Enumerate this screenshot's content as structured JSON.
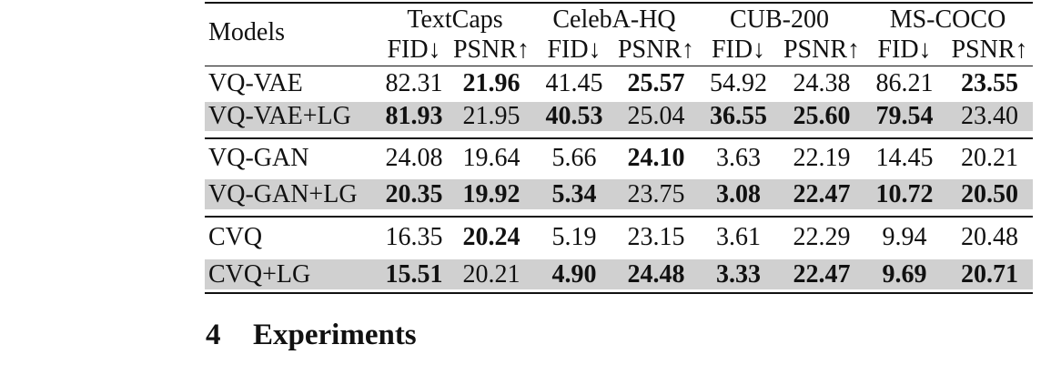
{
  "table": {
    "models_header": "Models",
    "datasets": [
      "TextCaps",
      "CelebA-HQ",
      "CUB-200",
      "MS-COCO"
    ],
    "metrics": [
      "FID↓",
      "PSNR↑",
      "FID↓",
      "PSNR↑",
      "FID↓",
      "PSNR↑",
      "FID↓",
      "PSNR↑"
    ],
    "rows": [
      {
        "model": "VQ-VAE",
        "values": [
          "82.31",
          "21.96",
          "41.45",
          "25.57",
          "54.92",
          "24.38",
          "86.21",
          "23.55"
        ],
        "bold": [
          false,
          true,
          false,
          true,
          false,
          false,
          false,
          true
        ],
        "shaded": false
      },
      {
        "model": "VQ-VAE+LG",
        "values": [
          "81.93",
          "21.95",
          "40.53",
          "25.04",
          "36.55",
          "25.60",
          "79.54",
          "23.40"
        ],
        "bold": [
          true,
          false,
          true,
          false,
          true,
          true,
          true,
          false
        ],
        "shaded": true
      },
      {
        "model": "VQ-GAN",
        "values": [
          "24.08",
          "19.64",
          "5.66",
          "24.10",
          "3.63",
          "22.19",
          "14.45",
          "20.21"
        ],
        "bold": [
          false,
          false,
          false,
          true,
          false,
          false,
          false,
          false
        ],
        "shaded": false
      },
      {
        "model": "VQ-GAN+LG",
        "values": [
          "20.35",
          "19.92",
          "5.34",
          "23.75",
          "3.08",
          "22.47",
          "10.72",
          "20.50"
        ],
        "bold": [
          true,
          true,
          true,
          false,
          true,
          true,
          true,
          true
        ],
        "shaded": true
      },
      {
        "model": "CVQ",
        "values": [
          "16.35",
          "20.24",
          "5.19",
          "23.15",
          "3.61",
          "22.29",
          "9.94",
          "20.48"
        ],
        "bold": [
          false,
          true,
          false,
          false,
          false,
          false,
          false,
          false
        ],
        "shaded": false
      },
      {
        "model": "CVQ+LG",
        "values": [
          "15.51",
          "20.21",
          "4.90",
          "24.48",
          "3.33",
          "22.47",
          "9.69",
          "20.71"
        ],
        "bold": [
          true,
          false,
          true,
          true,
          true,
          true,
          true,
          true
        ],
        "shaded": true
      }
    ],
    "shade_color": "#d0d0d0"
  },
  "section": {
    "number": "4",
    "title": "Experiments"
  }
}
